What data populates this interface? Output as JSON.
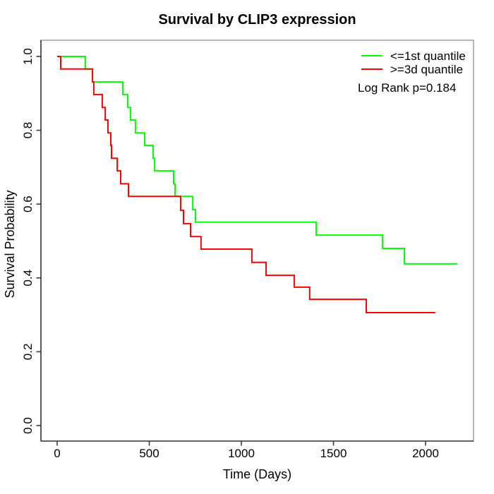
{
  "figure": {
    "title": "Survival by CLIP3 expression",
    "x_axis": {
      "label": "Time (Days)",
      "tick_labels": [
        "0",
        "500",
        "1000",
        "1500",
        "2000"
      ],
      "tick_values": [
        0,
        500,
        1000,
        1500,
        2000
      ]
    },
    "y_axis": {
      "label": "Survival Probability",
      "tick_labels": [
        "0.0",
        "0.2",
        "0.4",
        "0.6",
        "0.8",
        "1.0"
      ],
      "tick_values": [
        0,
        0.2,
        0.4,
        0.6,
        0.8,
        1.0
      ]
    },
    "legend": {
      "entries": [
        {
          "label": "<=1st quantile",
          "color": "#00ff00"
        },
        {
          "label": ">=3d quantile",
          "color": "#ff0000"
        }
      ]
    },
    "annotation": "Log Rank p=0.184",
    "colors": {
      "axis": "#3a3a3a",
      "box": "#989898",
      "background": "#ffffff",
      "text": "#000000"
    }
  },
  "chart_data": {
    "type": "line",
    "subtype": "kaplan-meier-step",
    "title": "Survival by CLIP3 expression",
    "xlabel": "Time (Days)",
    "ylabel": "Survival Probability",
    "xlim": [
      -87,
      2259
    ],
    "ylim": [
      -0.042,
      1.044
    ],
    "x_ticks": [
      0,
      500,
      1000,
      1500,
      2000
    ],
    "y_ticks": [
      0,
      0.2,
      0.4,
      0.6,
      0.8,
      1.0
    ],
    "grid": false,
    "legend_position": "top-right",
    "log_rank_p": 0.184,
    "series": [
      {
        "name": "<=1st quantile",
        "color": "#00ff00",
        "points": [
          [
            0,
            1.0
          ],
          [
            153,
            0.966
          ],
          [
            192,
            0.931
          ],
          [
            356,
            0.897
          ],
          [
            383,
            0.862
          ],
          [
            398,
            0.828
          ],
          [
            425,
            0.793
          ],
          [
            475,
            0.759
          ],
          [
            521,
            0.724
          ],
          [
            529,
            0.69
          ],
          [
            632,
            0.655
          ],
          [
            640,
            0.621
          ],
          [
            736,
            0.585
          ],
          [
            751,
            0.551
          ],
          [
            1406,
            0.516
          ],
          [
            1766,
            0.48
          ],
          [
            1885,
            0.438
          ],
          [
            2172,
            0.438
          ]
        ]
      },
      {
        "name": ">=3d quantile",
        "color": "#ff0000",
        "points": [
          [
            0,
            1.0
          ],
          [
            19,
            0.966
          ],
          [
            192,
            0.931
          ],
          [
            199,
            0.897
          ],
          [
            245,
            0.862
          ],
          [
            261,
            0.828
          ],
          [
            276,
            0.793
          ],
          [
            291,
            0.759
          ],
          [
            295,
            0.724
          ],
          [
            326,
            0.69
          ],
          [
            345,
            0.655
          ],
          [
            387,
            0.621
          ],
          [
            670,
            0.583
          ],
          [
            686,
            0.547
          ],
          [
            724,
            0.512
          ],
          [
            781,
            0.478
          ],
          [
            1057,
            0.442
          ],
          [
            1134,
            0.407
          ],
          [
            1287,
            0.375
          ],
          [
            1371,
            0.342
          ],
          [
            1678,
            0.306
          ],
          [
            2053,
            0.306
          ]
        ]
      }
    ]
  }
}
